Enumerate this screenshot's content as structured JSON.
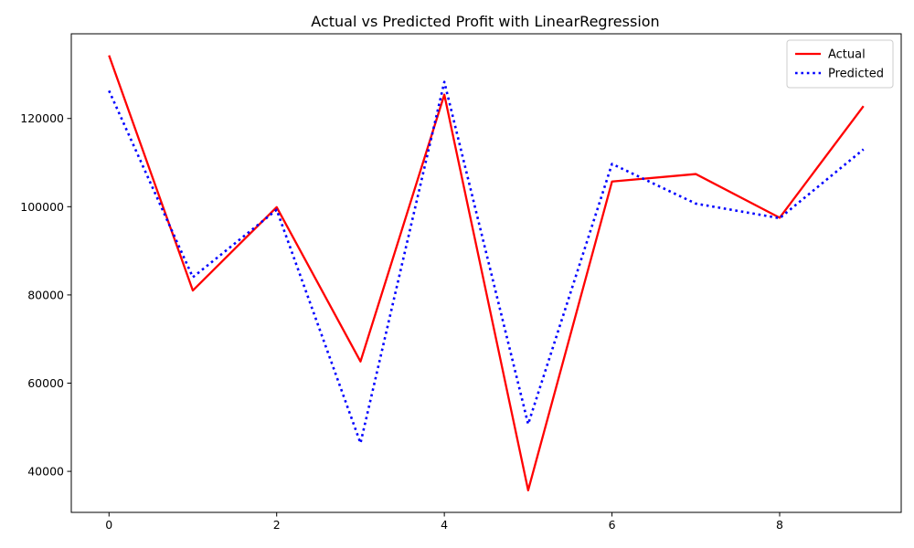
{
  "chart_data": {
    "type": "line",
    "title": "Actual vs Predicted Profit with LinearRegression",
    "xlabel": "",
    "ylabel": "",
    "x": [
      0,
      1,
      2,
      3,
      4,
      5,
      6,
      7,
      8,
      9
    ],
    "xlim": [
      -0.45,
      9.45
    ],
    "ylim": [
      30700,
      139200
    ],
    "x_ticks": [
      0,
      2,
      4,
      6,
      8
    ],
    "y_ticks": [
      40000,
      60000,
      80000,
      100000,
      120000
    ],
    "grid": false,
    "legend_position": "top-right",
    "series": [
      {
        "name": "Actual",
        "color": "#ff0000",
        "style": "solid",
        "values": [
          134300,
          81000,
          99900,
          64900,
          125400,
          35700,
          105700,
          107400,
          97500,
          122800
        ]
      },
      {
        "name": "Predicted",
        "color": "#0000ff",
        "style": "dotted",
        "values": [
          126300,
          84000,
          99300,
          46400,
          128300,
          50700,
          109700,
          100700,
          97400,
          113000
        ]
      }
    ]
  }
}
